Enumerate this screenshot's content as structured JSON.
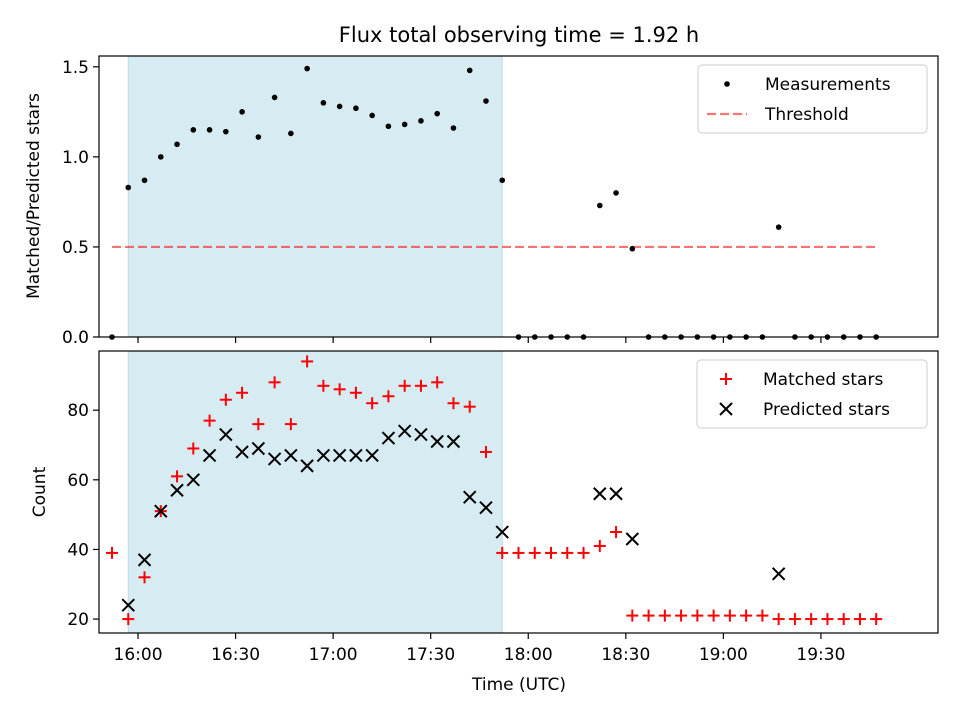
{
  "title": "Flux total observing time = 1.92 h",
  "colors": {
    "shade": "#add8e6",
    "threshold": "#ff0000",
    "matched": "#ff0000",
    "predicted": "#000000",
    "measurement": "#000000"
  },
  "chart_data": [
    {
      "type": "scatter",
      "title": "Flux total observing time = 1.92 h",
      "ylabel": "Matched/Predicted stars",
      "xlabel": "",
      "xlim": [
        "15:48",
        "20:06"
      ],
      "ylim": [
        0,
        1.56
      ],
      "yticks": [
        "0.0",
        "0.5",
        "1.0",
        "1.5"
      ],
      "xticks": [
        "16:00",
        "16:30",
        "17:00",
        "17:30",
        "18:00",
        "18:30",
        "19:00",
        "19:30"
      ],
      "grid": false,
      "legend_position": "top-right",
      "shaded_span": [
        "15:57",
        "17:52"
      ],
      "series": [
        {
          "name": "Measurements",
          "type": "scatter",
          "points": [
            [
              "15:52",
              0.0
            ],
            [
              "15:57",
              0.83
            ],
            [
              "16:02",
              0.87
            ],
            [
              "16:07",
              1.0
            ],
            [
              "16:12",
              1.07
            ],
            [
              "16:17",
              1.15
            ],
            [
              "16:22",
              1.15
            ],
            [
              "16:27",
              1.14
            ],
            [
              "16:32",
              1.25
            ],
            [
              "16:37",
              1.11
            ],
            [
              "16:42",
              1.33
            ],
            [
              "16:47",
              1.13
            ],
            [
              "16:52",
              1.49
            ],
            [
              "16:57",
              1.3
            ],
            [
              "17:02",
              1.28
            ],
            [
              "17:07",
              1.27
            ],
            [
              "17:12",
              1.23
            ],
            [
              "17:17",
              1.17
            ],
            [
              "17:22",
              1.18
            ],
            [
              "17:27",
              1.2
            ],
            [
              "17:32",
              1.24
            ],
            [
              "17:37",
              1.16
            ],
            [
              "17:42",
              1.48
            ],
            [
              "17:47",
              1.31
            ],
            [
              "17:52",
              0.87
            ],
            [
              "17:57",
              0.0
            ],
            [
              "18:02",
              0.0
            ],
            [
              "18:07",
              0.0
            ],
            [
              "18:12",
              0.0
            ],
            [
              "18:17",
              0.0
            ],
            [
              "18:22",
              0.73
            ],
            [
              "18:27",
              0.8
            ],
            [
              "18:32",
              0.49
            ],
            [
              "18:37",
              0.0
            ],
            [
              "18:42",
              0.0
            ],
            [
              "18:47",
              0.0
            ],
            [
              "18:52",
              0.0
            ],
            [
              "18:57",
              0.0
            ],
            [
              "19:02",
              0.0
            ],
            [
              "19:07",
              0.0
            ],
            [
              "19:12",
              0.0
            ],
            [
              "19:17",
              0.61
            ],
            [
              "19:22",
              0.0
            ],
            [
              "19:27",
              0.0
            ],
            [
              "19:32",
              0.0
            ],
            [
              "19:37",
              0.0
            ],
            [
              "19:42",
              0.0
            ],
            [
              "19:47",
              0.0
            ]
          ]
        },
        {
          "name": "Threshold",
          "type": "line",
          "style": "dashed",
          "x": [
            "15:52",
            "19:47"
          ],
          "y": [
            0.5,
            0.5
          ]
        }
      ]
    },
    {
      "type": "scatter",
      "title": "",
      "ylabel": "Count",
      "xlabel": "Time (UTC)",
      "xlim": [
        "15:48",
        "20:06"
      ],
      "ylim": [
        16,
        97
      ],
      "yticks": [
        "20",
        "40",
        "60",
        "80"
      ],
      "xticks": [
        "16:00",
        "16:30",
        "17:00",
        "17:30",
        "18:00",
        "18:30",
        "19:00",
        "19:30"
      ],
      "grid": false,
      "legend_position": "top-right",
      "shaded_span": [
        "15:57",
        "17:52"
      ],
      "series": [
        {
          "name": "Matched stars",
          "marker": "+",
          "points": [
            [
              "15:52",
              39
            ],
            [
              "15:57",
              20
            ],
            [
              "16:02",
              32
            ],
            [
              "16:07",
              51
            ],
            [
              "16:12",
              61
            ],
            [
              "16:17",
              69
            ],
            [
              "16:22",
              77
            ],
            [
              "16:27",
              83
            ],
            [
              "16:32",
              85
            ],
            [
              "16:37",
              76
            ],
            [
              "16:42",
              88
            ],
            [
              "16:47",
              76
            ],
            [
              "16:52",
              94
            ],
            [
              "16:57",
              87
            ],
            [
              "17:02",
              86
            ],
            [
              "17:07",
              85
            ],
            [
              "17:12",
              82
            ],
            [
              "17:17",
              84
            ],
            [
              "17:22",
              87
            ],
            [
              "17:27",
              87
            ],
            [
              "17:32",
              88
            ],
            [
              "17:37",
              82
            ],
            [
              "17:42",
              81
            ],
            [
              "17:47",
              68
            ],
            [
              "17:52",
              39
            ],
            [
              "17:57",
              39
            ],
            [
              "18:02",
              39
            ],
            [
              "18:07",
              39
            ],
            [
              "18:12",
              39
            ],
            [
              "18:17",
              39
            ],
            [
              "18:22",
              41
            ],
            [
              "18:27",
              45
            ],
            [
              "18:32",
              21
            ],
            [
              "18:37",
              21
            ],
            [
              "18:42",
              21
            ],
            [
              "18:47",
              21
            ],
            [
              "18:52",
              21
            ],
            [
              "18:57",
              21
            ],
            [
              "19:02",
              21
            ],
            [
              "19:07",
              21
            ],
            [
              "19:12",
              21
            ],
            [
              "19:17",
              20
            ],
            [
              "19:22",
              20
            ],
            [
              "19:27",
              20
            ],
            [
              "19:32",
              20
            ],
            [
              "19:37",
              20
            ],
            [
              "19:42",
              20
            ],
            [
              "19:47",
              20
            ]
          ]
        },
        {
          "name": "Predicted stars",
          "marker": "x",
          "points": [
            [
              "15:57",
              24
            ],
            [
              "16:02",
              37
            ],
            [
              "16:07",
              51
            ],
            [
              "16:12",
              57
            ],
            [
              "16:17",
              60
            ],
            [
              "16:22",
              67
            ],
            [
              "16:27",
              73
            ],
            [
              "16:32",
              68
            ],
            [
              "16:37",
              69
            ],
            [
              "16:42",
              66
            ],
            [
              "16:47",
              67
            ],
            [
              "16:52",
              64
            ],
            [
              "16:57",
              67
            ],
            [
              "17:02",
              67
            ],
            [
              "17:07",
              67
            ],
            [
              "17:12",
              67
            ],
            [
              "17:17",
              72
            ],
            [
              "17:22",
              74
            ],
            [
              "17:27",
              73
            ],
            [
              "17:32",
              71
            ],
            [
              "17:37",
              71
            ],
            [
              "17:42",
              55
            ],
            [
              "17:47",
              52
            ],
            [
              "17:52",
              45
            ],
            [
              "18:22",
              56
            ],
            [
              "18:27",
              56
            ],
            [
              "18:32",
              43
            ],
            [
              "19:17",
              33
            ]
          ]
        }
      ]
    }
  ]
}
